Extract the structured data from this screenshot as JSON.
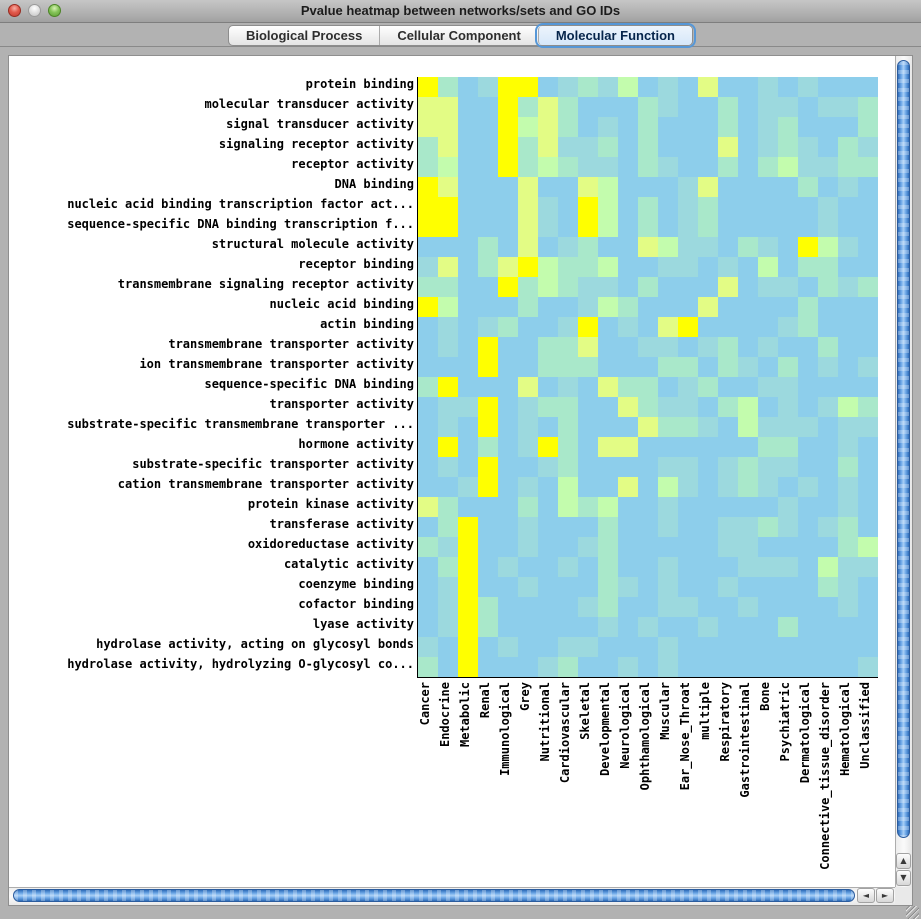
{
  "window": {
    "title": "Pvalue heatmap between networks/sets and GO IDs",
    "traffic_lights": [
      "close",
      "minimize",
      "zoom"
    ]
  },
  "tabs": [
    {
      "label": "Biological Process",
      "selected": false
    },
    {
      "label": "Cellular Component",
      "selected": false
    },
    {
      "label": "Molecular Function",
      "selected": true
    }
  ],
  "scrollbar_icons": {
    "up": "▲",
    "down": "▼",
    "left": "◄",
    "right": "►"
  },
  "chart_data": {
    "type": "heatmap",
    "title": "Pvalue heatmap between networks/sets and GO IDs",
    "note": "cell colors encode p-value significance: Y=strongest (yellow) through y,G,M,T to B=weakest (blue)",
    "row_labels": [
      "protein binding",
      "molecular transducer activity",
      "signal transducer activity",
      "signaling receptor activity",
      "receptor activity",
      "DNA binding",
      "nucleic acid binding transcription factor act...",
      "sequence-specific DNA binding transcription f...",
      "structural molecule activity",
      "receptor binding",
      "transmembrane signaling receptor activity",
      "nucleic acid binding",
      "actin binding",
      "transmembrane transporter activity",
      "ion transmembrane transporter activity",
      "sequence-specific DNA binding",
      "transporter activity",
      "substrate-specific transmembrane transporter ...",
      "hormone activity",
      "substrate-specific transporter activity",
      "cation transmembrane transporter activity",
      "protein kinase activity",
      "transferase activity",
      "oxidoreductase activity",
      "catalytic activity",
      "coenzyme binding",
      "cofactor binding",
      "lyase activity",
      "hydrolase activity, acting on glycosyl bonds",
      "hydrolase activity, hydrolyzing O-glycosyl co..."
    ],
    "col_labels": [
      "Cancer",
      "Endocrine",
      "Metabolic",
      "Renal",
      "Immunological",
      "Grey",
      "Nutritional",
      "Cardiovascular",
      "Skeletal",
      "Developmental",
      "Neurological",
      "Ophthamological",
      "Muscular",
      "Ear_Nose_Throat",
      "multiple",
      "Respiratory",
      "Gastrointestinal",
      "Bone",
      "Psychiatric",
      "Dermatological",
      "Connective_tissue_disorder",
      "Hematological",
      "Unclassified"
    ],
    "palette": {
      "B": "#8DCEEB",
      "T": "#9CD9DE",
      "M": "#A9E8CA",
      "G": "#C3FCAD",
      "y": "#E3FC85",
      "Y": "#FFFF00"
    },
    "grid": [
      "YMBTYYBTMTGBTByBBTBTBBB",
      "yyBBYMyMBBBMTBBMBTTBTTM",
      "yyBBYGyMBTBMBBBMBTMBBBM",
      "MyBBYMyTTMBMBBByBTMTBMT",
      "MGBBYMGMTTBMTBBMBMGTTMM",
      "YyBBByBByGBBBTyBBBBMBTB",
      "YYBBByTBYGBMBTMBBBBBTBB",
      "YYBBByTBYGBMBTMBBBBBTBB",
      "BBBMByBTMBByGTTBMTBYGTB",
      "TyBMyYGMMGBBTTBTBGBMMBB",
      "MMBBYMGMTTBMBBByBTTBMTM",
      "YGBBBMBBTGMBBByBBBBMBBB",
      "BTBTMBBTYBTByYBBBBTMBBB",
      "BTBYBBMMyBBTTBTMBTBBMBB",
      "BBBYBBMMMBBBMMBMTBMBTBT",
      "MYBBByBTByMMBTMBBTTBBBB",
      "BTTYBTMMBByMTTBMGBTBTGM",
      "BTBYBTBMBBByMMTBGTTTBTT",
      "BYBMBTYMByyBBBBBBMMBBTB",
      "BTBYBBTMBBBBTTBTMTTBBMB",
      "BBTYBTBGBByBGTBTMTBTBTB",
      "yMBBBMBGMGBBTBBBBBTBBTB",
      "BMYBBTBBBMBBTBBTTMTBTMB",
      "MTYBBTBBTMBBBBBTTBBBBMG",
      "BMYBTBBTBMBBTBBBTTTBGTT",
      "BTYBBTBBBMTBTBBTBBBBMTB",
      "BTYMBBBBTMBBTTBBTBBBBTB",
      "BTYMBBBBBTBTBBTBBBMBBBB",
      "TBYBTBBTTBBBTBBBBBBBBBB",
      "MBYBBBTMBBTBTBBBBBBBBBT"
    ]
  }
}
